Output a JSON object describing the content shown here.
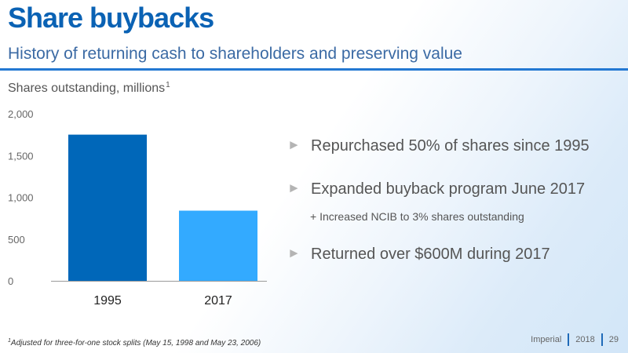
{
  "header": {
    "title": "Share buybacks",
    "subtitle": "History of returning cash to shareholders and preserving value"
  },
  "chart_heading": {
    "text": "Shares outstanding, millions",
    "footnote_marker": "1"
  },
  "chart_data": {
    "type": "bar",
    "title": "Shares outstanding, millions",
    "categories": [
      "1995",
      "2017"
    ],
    "values": [
      1750,
      840
    ],
    "ylim": [
      0,
      2000
    ],
    "yticks": [
      0,
      500,
      1000,
      1500,
      2000
    ],
    "ytick_labels": [
      "0",
      "500",
      "1,000",
      "1,500",
      "2,000"
    ],
    "bar_colors": [
      "#0067b9",
      "#33aaff"
    ],
    "grid": false,
    "legend": "none"
  },
  "bullets": [
    {
      "arrow": "►",
      "text": "Repurchased 50% of shares since 1995"
    },
    {
      "arrow": "►",
      "text": "Expanded buyback program June 2017"
    },
    {
      "arrow": "►",
      "text": "Returned over $600M during 2017"
    }
  ],
  "sub_bullet": "+ Increased NCIB to 3% shares outstanding",
  "footnote": {
    "marker": "1",
    "text": "Adjusted for three-for-one stock splits (May 15, 1998 and May 23, 2006)"
  },
  "footer": {
    "company": "Imperial",
    "year": "2018",
    "page": "29"
  },
  "colors": {
    "title": "#0a62b4",
    "rule": "#2378d2",
    "bar_1995": "#0067b9",
    "bar_2017": "#33aaff"
  }
}
